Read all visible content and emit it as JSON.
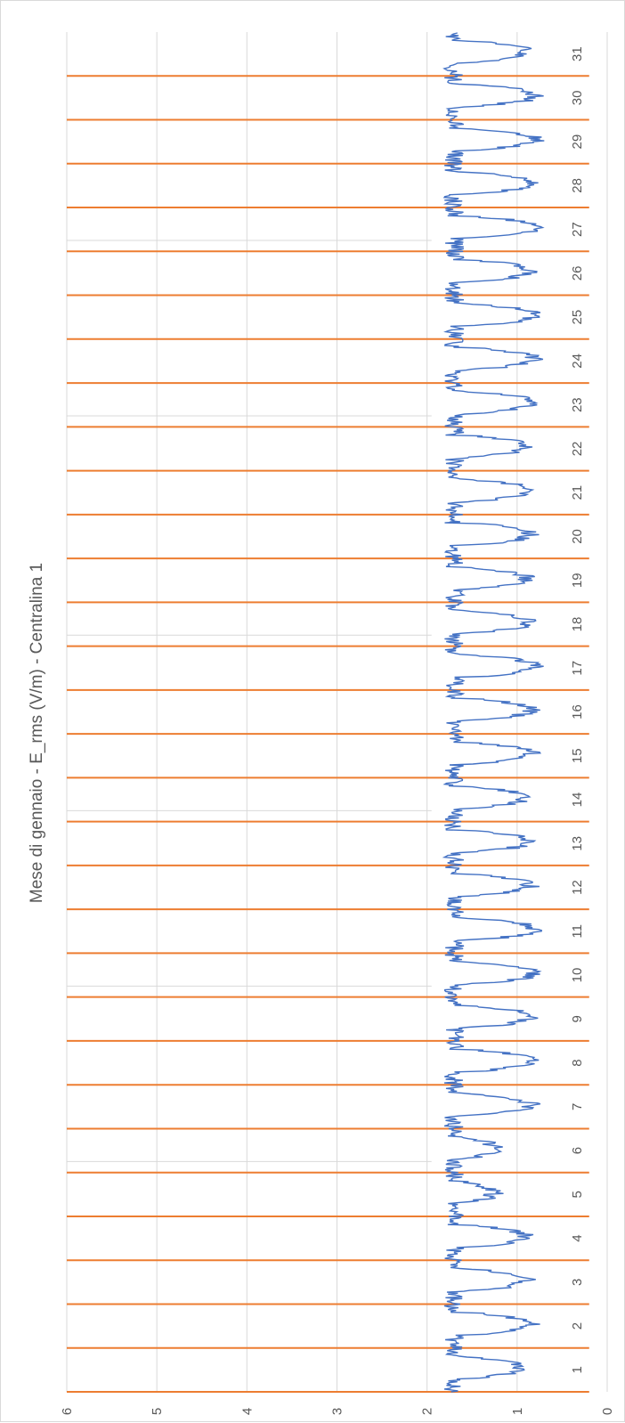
{
  "chart_data": {
    "type": "line",
    "title": "Mese di gennaio - E_rms (V/m) - Centralina 1",
    "xlabel": "",
    "ylabel": "",
    "orientation": "rotated-90-clockwise",
    "ylim": [
      0,
      6
    ],
    "y_ticks": [
      "0",
      "1",
      "2",
      "3",
      "4",
      "5",
      "6"
    ],
    "xlim": [
      0,
      31
    ],
    "x_ticks": [
      "1",
      "2",
      "3",
      "4",
      "5",
      "6",
      "7",
      "8",
      "9",
      "10",
      "11",
      "12",
      "13",
      "14",
      "15",
      "16",
      "17",
      "18",
      "19",
      "20",
      "21",
      "22",
      "23",
      "24",
      "25",
      "26",
      "27",
      "28",
      "29",
      "30",
      "31"
    ],
    "day_separators": [
      0,
      1,
      2,
      3,
      4,
      5,
      6,
      7,
      8,
      9,
      10,
      11,
      12,
      13,
      14,
      15,
      16,
      17,
      18,
      19,
      20,
      21,
      22,
      23,
      24,
      25,
      26,
      27,
      28,
      29,
      30
    ],
    "grid": true,
    "legend": "none",
    "series": [
      {
        "color": "#4472c4",
        "daily_profile": {
          "night_level": 1.7,
          "midday_dip": [
            0.95,
            0.85,
            0.9,
            0.9,
            1.25,
            1.25,
            0.85,
            0.85,
            0.85,
            0.8,
            0.8,
            0.85,
            0.85,
            0.9,
            0.85,
            0.85,
            0.8,
            0.85,
            0.9,
            0.85,
            0.85,
            0.9,
            0.8,
            0.8,
            0.8,
            0.85,
            0.8,
            0.85,
            0.8,
            0.8,
            0.9
          ]
        }
      }
    ],
    "separator_color": "#ed7d31",
    "grid_color": "#d9d9d9"
  }
}
